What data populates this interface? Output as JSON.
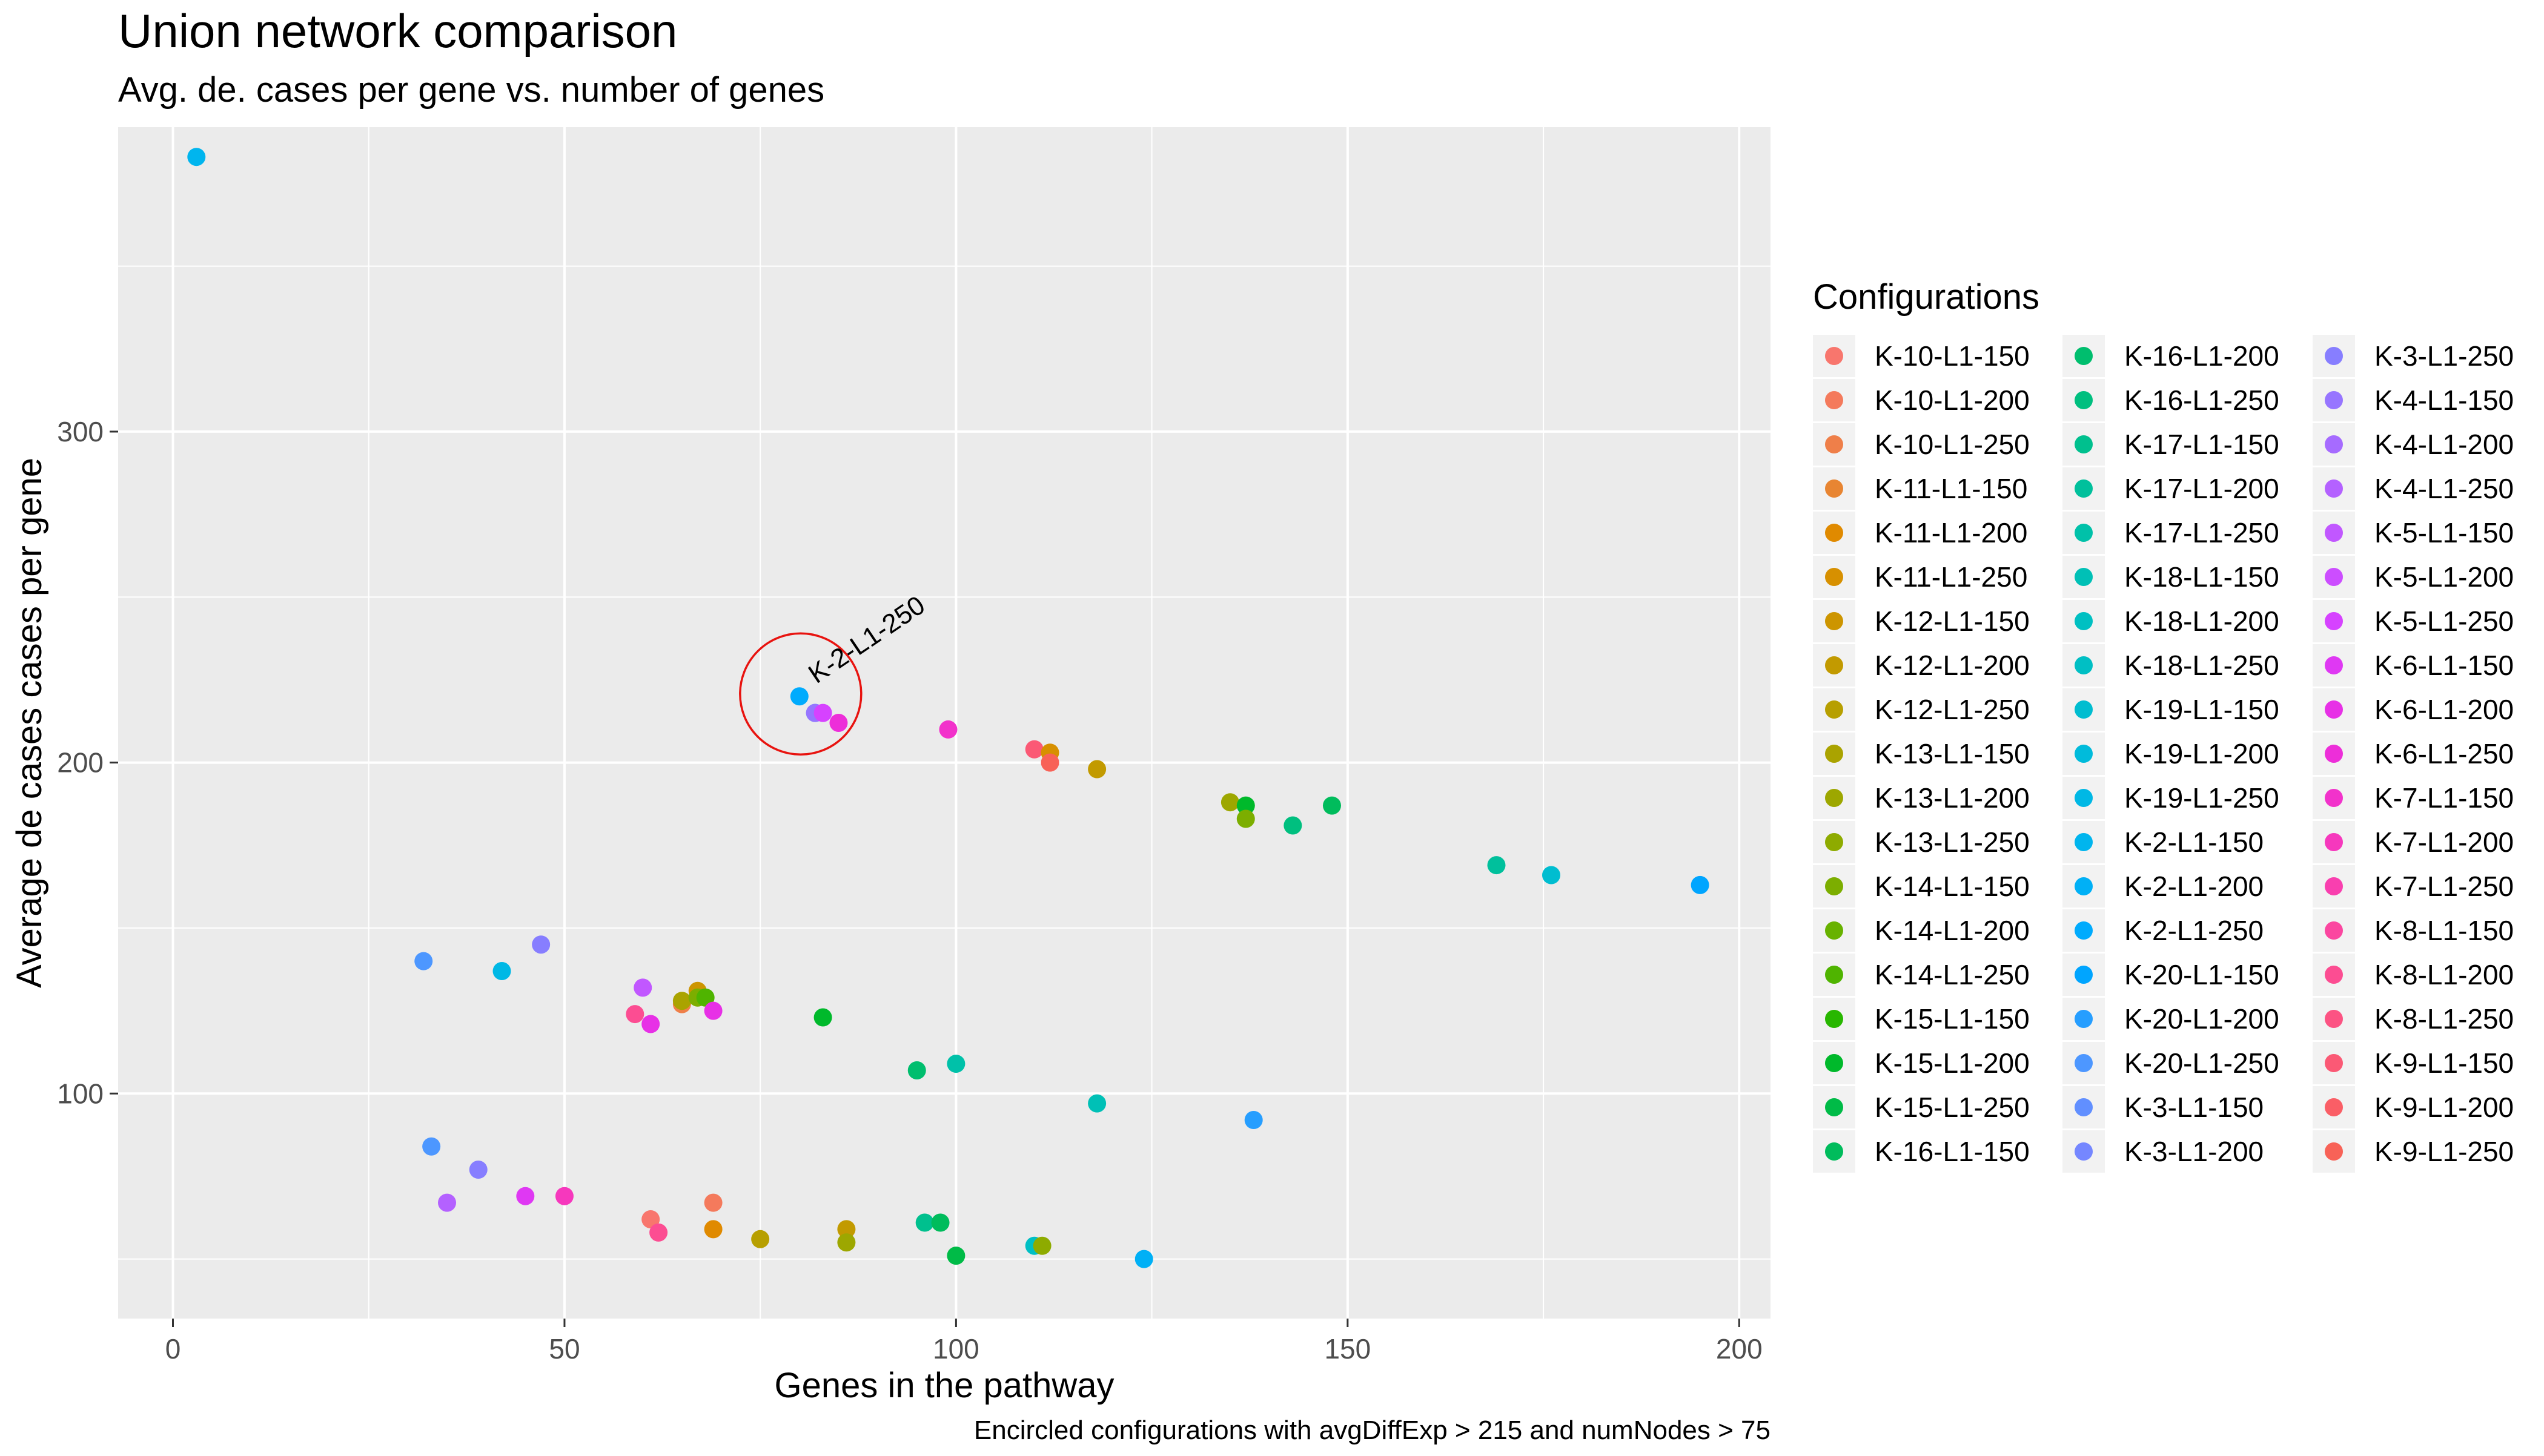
{
  "chart_data": {
    "type": "scatter",
    "title": "Union network comparison",
    "subtitle": "Avg. de. cases per gene vs. number of genes",
    "xlabel": "Genes in the pathway",
    "ylabel": "Average de cases cases per gene",
    "caption": "Encircled configurations with avgDiffExp > 215 and numNodes > 75",
    "xlim": [
      -7,
      204
    ],
    "ylim": [
      32,
      392
    ],
    "x_ticks": [
      0,
      50,
      100,
      150,
      200
    ],
    "y_ticks": [
      100,
      200,
      300
    ],
    "grid": true,
    "legend": {
      "title": "Configurations",
      "placement": "right",
      "columns": 3,
      "entries": [
        {
          "label": "K-10-L1-150",
          "color": "#F8766D"
        },
        {
          "label": "K-10-L1-200",
          "color": "#F47A5C"
        },
        {
          "label": "K-10-L1-250",
          "color": "#EF7F49"
        },
        {
          "label": "K-11-L1-150",
          "color": "#E88532"
        },
        {
          "label": "K-11-L1-200",
          "color": "#E08A00"
        },
        {
          "label": "K-11-L1-250",
          "color": "#D79000"
        },
        {
          "label": "K-12-L1-150",
          "color": "#CD9500"
        },
        {
          "label": "K-12-L1-200",
          "color": "#C29A00"
        },
        {
          "label": "K-12-L1-250",
          "color": "#B79F00"
        },
        {
          "label": "K-13-L1-150",
          "color": "#AAA300"
        },
        {
          "label": "K-13-L1-200",
          "color": "#9DA700"
        },
        {
          "label": "K-13-L1-250",
          "color": "#8EAB00"
        },
        {
          "label": "K-14-L1-150",
          "color": "#7CAE00"
        },
        {
          "label": "K-14-L1-200",
          "color": "#68B200"
        },
        {
          "label": "K-14-L1-250",
          "color": "#4FB400"
        },
        {
          "label": "K-15-L1-150",
          "color": "#28B700"
        },
        {
          "label": "K-15-L1-200",
          "color": "#00B92B"
        },
        {
          "label": "K-15-L1-250",
          "color": "#00BB47"
        },
        {
          "label": "K-16-L1-150",
          "color": "#00BC5C"
        },
        {
          "label": "K-16-L1-200",
          "color": "#00BE6E"
        },
        {
          "label": "K-16-L1-250",
          "color": "#00BF7F"
        },
        {
          "label": "K-17-L1-150",
          "color": "#00C08E"
        },
        {
          "label": "K-17-L1-200",
          "color": "#00C09C"
        },
        {
          "label": "K-17-L1-250",
          "color": "#00C1A9"
        },
        {
          "label": "K-18-L1-150",
          "color": "#00C0B6"
        },
        {
          "label": "K-18-L1-200",
          "color": "#00C0C2"
        },
        {
          "label": "K-18-L1-250",
          "color": "#00BFC4"
        },
        {
          "label": "K-19-L1-150",
          "color": "#00BDD0"
        },
        {
          "label": "K-19-L1-200",
          "color": "#00BBDB"
        },
        {
          "label": "K-19-L1-250",
          "color": "#00B8E5"
        },
        {
          "label": "K-2-L1-150",
          "color": "#00B5EE"
        },
        {
          "label": "K-2-L1-200",
          "color": "#00B0F6"
        },
        {
          "label": "K-2-L1-250",
          "color": "#00ABFD"
        },
        {
          "label": "K-20-L1-150",
          "color": "#00A5FF"
        },
        {
          "label": "K-20-L1-200",
          "color": "#269EFF"
        },
        {
          "label": "K-20-L1-250",
          "color": "#4D97FF"
        },
        {
          "label": "K-3-L1-150",
          "color": "#618FFF"
        },
        {
          "label": "K-3-L1-200",
          "color": "#7587FF"
        },
        {
          "label": "K-3-L1-250",
          "color": "#877EFF"
        },
        {
          "label": "K-4-L1-150",
          "color": "#9775FF"
        },
        {
          "label": "K-4-L1-200",
          "color": "#A66BFF"
        },
        {
          "label": "K-4-L1-250",
          "color": "#B461FF"
        },
        {
          "label": "K-5-L1-150",
          "color": "#C157FF"
        },
        {
          "label": "K-5-L1-200",
          "color": "#CC4DFF"
        },
        {
          "label": "K-5-L1-250",
          "color": "#D642FF"
        },
        {
          "label": "K-6-L1-150",
          "color": "#DF38F3"
        },
        {
          "label": "K-6-L1-200",
          "color": "#E730E6"
        },
        {
          "label": "K-6-L1-250",
          "color": "#ED2ED9"
        },
        {
          "label": "K-7-L1-150",
          "color": "#F232CB"
        },
        {
          "label": "K-7-L1-200",
          "color": "#F638BD"
        },
        {
          "label": "K-7-L1-250",
          "color": "#F93FAF"
        },
        {
          "label": "K-8-L1-150",
          "color": "#FB46A0"
        },
        {
          "label": "K-8-L1-200",
          "color": "#FC4D92"
        },
        {
          "label": "K-8-L1-250",
          "color": "#FC5383"
        },
        {
          "label": "K-9-L1-150",
          "color": "#FB5975"
        },
        {
          "label": "K-9-L1-200",
          "color": "#FA5E66"
        },
        {
          "label": "K-9-L1-250",
          "color": "#F86257"
        }
      ]
    },
    "annotation": {
      "label": "K-2-L1-250",
      "x": 80,
      "y": 220,
      "shape": "circle",
      "color": "#E8130F"
    },
    "points": [
      {
        "x": 3,
        "y": 383,
        "color": "#00B5EE"
      },
      {
        "x": 32,
        "y": 140,
        "color": "#4D97FF"
      },
      {
        "x": 42,
        "y": 137,
        "color": "#00B8E5"
      },
      {
        "x": 47,
        "y": 145,
        "color": "#877EFF"
      },
      {
        "x": 33,
        "y": 84,
        "color": "#4D97FF"
      },
      {
        "x": 39,
        "y": 77,
        "color": "#877EFF"
      },
      {
        "x": 35,
        "y": 67,
        "color": "#B461FF"
      },
      {
        "x": 45,
        "y": 69,
        "color": "#DF38F3"
      },
      {
        "x": 50,
        "y": 69,
        "color": "#F638BD"
      },
      {
        "x": 59,
        "y": 124,
        "color": "#FC4D92"
      },
      {
        "x": 60,
        "y": 132,
        "color": "#C157FF"
      },
      {
        "x": 61,
        "y": 121,
        "color": "#E730E6"
      },
      {
        "x": 65,
        "y": 127,
        "color": "#EF7F49"
      },
      {
        "x": 65,
        "y": 128,
        "color": "#AAA300"
      },
      {
        "x": 67,
        "y": 131,
        "color": "#CD9500"
      },
      {
        "x": 67,
        "y": 129,
        "color": "#7CAE00"
      },
      {
        "x": 68,
        "y": 129,
        "color": "#4FB400"
      },
      {
        "x": 69,
        "y": 125,
        "color": "#E730E6"
      },
      {
        "x": 61,
        "y": 62,
        "color": "#F8766D"
      },
      {
        "x": 62,
        "y": 58,
        "color": "#FC4D92"
      },
      {
        "x": 69,
        "y": 67,
        "color": "#F47A5C"
      },
      {
        "x": 69,
        "y": 59,
        "color": "#E08A00"
      },
      {
        "x": 75,
        "y": 56,
        "color": "#B79F00"
      },
      {
        "x": 80,
        "y": 220,
        "color": "#00ABFD"
      },
      {
        "x": 82,
        "y": 215,
        "color": "#00B0F6"
      },
      {
        "x": 82,
        "y": 215,
        "color": "#9775FF"
      },
      {
        "x": 83,
        "y": 215,
        "color": "#D642FF"
      },
      {
        "x": 85,
        "y": 212,
        "color": "#ED2ED9"
      },
      {
        "x": 83,
        "y": 123,
        "color": "#00B92B"
      },
      {
        "x": 86,
        "y": 59,
        "color": "#C29A00"
      },
      {
        "x": 86,
        "y": 55,
        "color": "#9DA700"
      },
      {
        "x": 95,
        "y": 107,
        "color": "#00BE6E"
      },
      {
        "x": 96,
        "y": 61,
        "color": "#00C08E"
      },
      {
        "x": 98,
        "y": 61,
        "color": "#00BC5C"
      },
      {
        "x": 99,
        "y": 210,
        "color": "#F232CB"
      },
      {
        "x": 100,
        "y": 109,
        "color": "#00C1A9"
      },
      {
        "x": 100,
        "y": 51,
        "color": "#00BB47"
      },
      {
        "x": 110,
        "y": 204,
        "color": "#FB5975"
      },
      {
        "x": 110,
        "y": 54,
        "color": "#00BFC4"
      },
      {
        "x": 111,
        "y": 54,
        "color": "#8EAB00"
      },
      {
        "x": 112,
        "y": 203,
        "color": "#D79000"
      },
      {
        "x": 112,
        "y": 200,
        "color": "#F86257"
      },
      {
        "x": 118,
        "y": 198,
        "color": "#C29A00"
      },
      {
        "x": 118,
        "y": 97,
        "color": "#00C0B6"
      },
      {
        "x": 124,
        "y": 50,
        "color": "#00B0F6"
      },
      {
        "x": 135,
        "y": 188,
        "color": "#9DA700"
      },
      {
        "x": 137,
        "y": 187,
        "color": "#00B92B"
      },
      {
        "x": 137,
        "y": 183,
        "color": "#7CAE00"
      },
      {
        "x": 138,
        "y": 92,
        "color": "#269EFF"
      },
      {
        "x": 143,
        "y": 181,
        "color": "#00BF7F"
      },
      {
        "x": 148,
        "y": 187,
        "color": "#00BC5C"
      },
      {
        "x": 169,
        "y": 169,
        "color": "#00C09C"
      },
      {
        "x": 176,
        "y": 166,
        "color": "#00BDD0"
      },
      {
        "x": 195,
        "y": 163,
        "color": "#00A5FF"
      }
    ]
  }
}
